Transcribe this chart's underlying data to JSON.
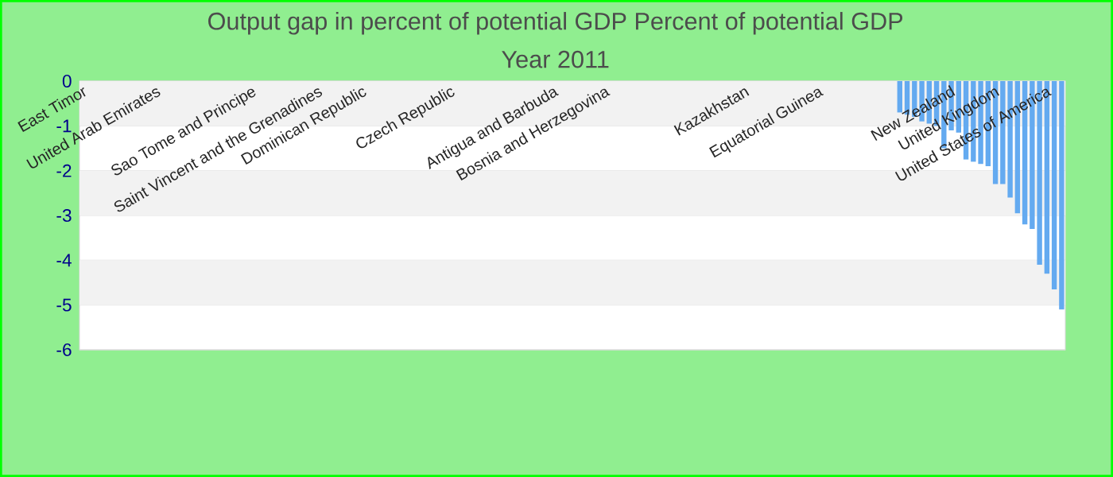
{
  "chart_data": {
    "type": "bar",
    "title": "Output gap in percent of potential GDP  Percent of potential GDP",
    "subtitle": "Year 2011",
    "categories": [
      "East Timor",
      null,
      null,
      null,
      null,
      null,
      null,
      null,
      null,
      null,
      "United Arab Emirates",
      null,
      null,
      null,
      null,
      null,
      null,
      null,
      null,
      null,
      null,
      null,
      null,
      "Sao Tome and Principe",
      null,
      null,
      null,
      null,
      null,
      null,
      null,
      null,
      "Saint Vincent and the Grenadines",
      null,
      null,
      null,
      null,
      null,
      "Dominican Republic",
      null,
      null,
      null,
      null,
      null,
      null,
      null,
      null,
      null,
      null,
      null,
      "Czech Republic",
      null,
      null,
      null,
      null,
      null,
      null,
      null,
      null,
      null,
      null,
      null,
      null,
      null,
      "Antigua and Barbuda",
      null,
      null,
      null,
      null,
      null,
      null,
      "Bosnia and Herzegovina",
      null,
      null,
      null,
      null,
      null,
      null,
      null,
      null,
      null,
      null,
      null,
      null,
      null,
      null,
      null,
      null,
      null,
      null,
      "Kazakhstan",
      null,
      null,
      null,
      null,
      null,
      null,
      null,
      null,
      null,
      "Equatorial Guinea",
      null,
      null,
      null,
      null,
      null,
      null,
      null,
      null,
      null,
      null,
      null,
      null,
      null,
      null,
      null,
      null,
      null,
      "New Zealand",
      null,
      null,
      null,
      null,
      null,
      "United Kingdom",
      null,
      null,
      null,
      null,
      null,
      null,
      "United States of America",
      null,
      null
    ],
    "values": [
      null,
      null,
      null,
      null,
      null,
      null,
      null,
      null,
      null,
      null,
      null,
      null,
      null,
      null,
      null,
      null,
      null,
      null,
      null,
      null,
      null,
      null,
      null,
      null,
      null,
      null,
      null,
      null,
      null,
      null,
      null,
      null,
      null,
      null,
      null,
      null,
      null,
      null,
      null,
      null,
      null,
      null,
      null,
      null,
      null,
      null,
      null,
      null,
      null,
      null,
      null,
      null,
      null,
      null,
      null,
      null,
      null,
      null,
      null,
      null,
      null,
      null,
      null,
      null,
      null,
      null,
      null,
      null,
      null,
      null,
      null,
      null,
      null,
      null,
      null,
      null,
      null,
      null,
      null,
      null,
      null,
      null,
      null,
      null,
      null,
      null,
      null,
      null,
      null,
      null,
      null,
      null,
      null,
      null,
      null,
      null,
      null,
      null,
      null,
      null,
      null,
      null,
      null,
      null,
      null,
      null,
      null,
      null,
      null,
      null,
      null,
      -0.7,
      -0.75,
      -0.8,
      -0.9,
      -0.95,
      -1.0,
      -1.5,
      -1.1,
      -1.15,
      -1.75,
      -1.8,
      -1.85,
      -1.9,
      -2.3,
      -2.3,
      -2.6,
      -2.95,
      -3.2,
      -3.3,
      -4.1,
      -4.3,
      -4.65,
      -5.1
    ],
    "color": "#64aaf0",
    "ylim": [
      -6,
      0
    ],
    "yticks": [
      0,
      -1,
      -2,
      -3,
      -4,
      -5,
      -6
    ],
    "grid": "y"
  }
}
